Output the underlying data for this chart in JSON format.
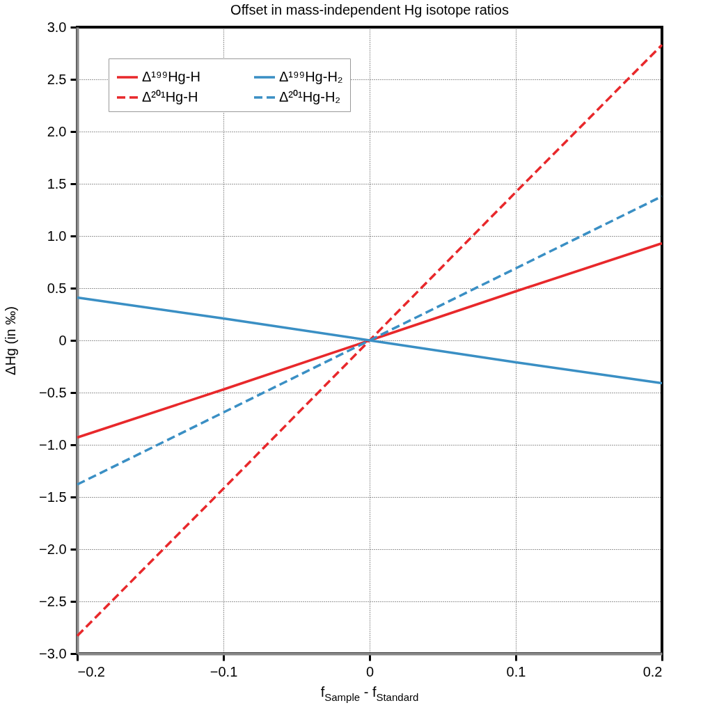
{
  "chart_data": {
    "type": "line",
    "title": "Offset in mass-independent Hg isotope ratios",
    "xlabel": "f$_{Sample}$ - f$_{Standard}$",
    "ylabel": "ΔHg (in ‰)",
    "x": [
      -0.2,
      -0.1,
      0,
      0.1,
      0.2
    ],
    "series": [
      {
        "name": "Δ¹⁹⁹Hg-H",
        "color": "#e8282b",
        "line_style": "solid",
        "values": [
          -0.93,
          -0.47,
          0,
          0.47,
          0.93
        ]
      },
      {
        "name": "Δ²⁰¹Hg-H",
        "color": "#e8282b",
        "line_style": "dashed",
        "values": [
          -2.83,
          -1.42,
          0,
          1.42,
          2.83
        ]
      },
      {
        "name": "Δ¹⁹⁹Hg-H₂",
        "color": "#3a8fc4",
        "line_style": "solid",
        "values": [
          0.41,
          0.21,
          0,
          -0.21,
          -0.41
        ]
      },
      {
        "name": "Δ²⁰¹Hg-H₂",
        "color": "#3a8fc4",
        "line_style": "dashed",
        "values": [
          -1.38,
          -0.69,
          0,
          0.69,
          1.38
        ]
      }
    ],
    "xlim": [
      -0.2,
      0.2
    ],
    "xticks": [
      {
        "value": -0.2,
        "label": "−0.2"
      },
      {
        "value": -0.1,
        "label": "−0.1"
      },
      0,
      0.1,
      0.2
    ],
    "ylim": [
      -3.0,
      3.0
    ],
    "yticks": [
      {
        "value": -3,
        "label": "−3.0"
      },
      {
        "value": -2.5,
        "label": "−2.5"
      },
      {
        "value": -2,
        "label": "−2.0"
      },
      {
        "value": -1.5,
        "label": "−1.5"
      },
      {
        "value": -1,
        "label": "−1.0"
      },
      {
        "value": -0.5,
        "label": "−0.5"
      },
      0,
      0.5,
      {
        "value": 1,
        "label": "1.0"
      },
      1.5,
      {
        "value": 2,
        "label": "2.0"
      },
      2.5,
      {
        "value": 3,
        "label": "3.0"
      }
    ],
    "grid": true,
    "legend": "top left"
  }
}
